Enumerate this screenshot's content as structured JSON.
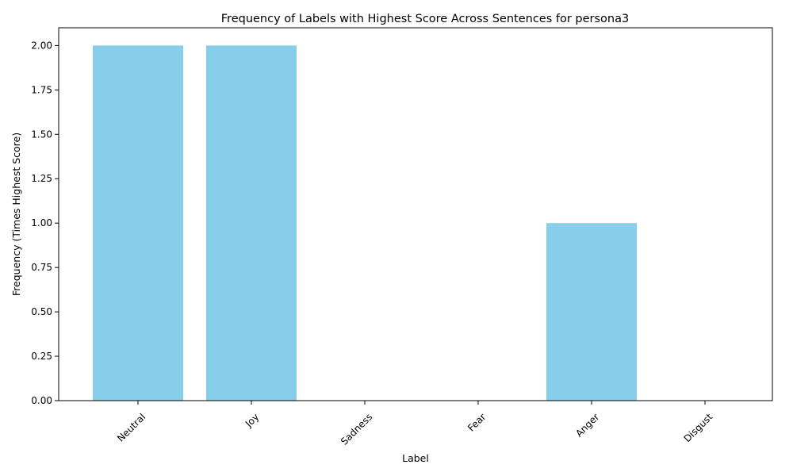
{
  "chart_data": {
    "type": "bar",
    "title": "Frequency of Labels with Highest Score Across Sentences for persona3",
    "xlabel": "Label",
    "ylabel": "Frequency (Times Highest Score)",
    "categories": [
      "Neutral",
      "Joy",
      "Sadness",
      "Fear",
      "Anger",
      "Disgust"
    ],
    "values": [
      2,
      2,
      0,
      0,
      1,
      0
    ],
    "ylim": [
      0,
      2.1
    ],
    "yticks": [
      "0.00",
      "0.25",
      "0.50",
      "0.75",
      "1.00",
      "1.25",
      "1.50",
      "1.75",
      "2.00"
    ],
    "bar_color": "#87ceeb",
    "grid": false,
    "legend": "none",
    "xtick_rotation": "45° right-aligned"
  }
}
